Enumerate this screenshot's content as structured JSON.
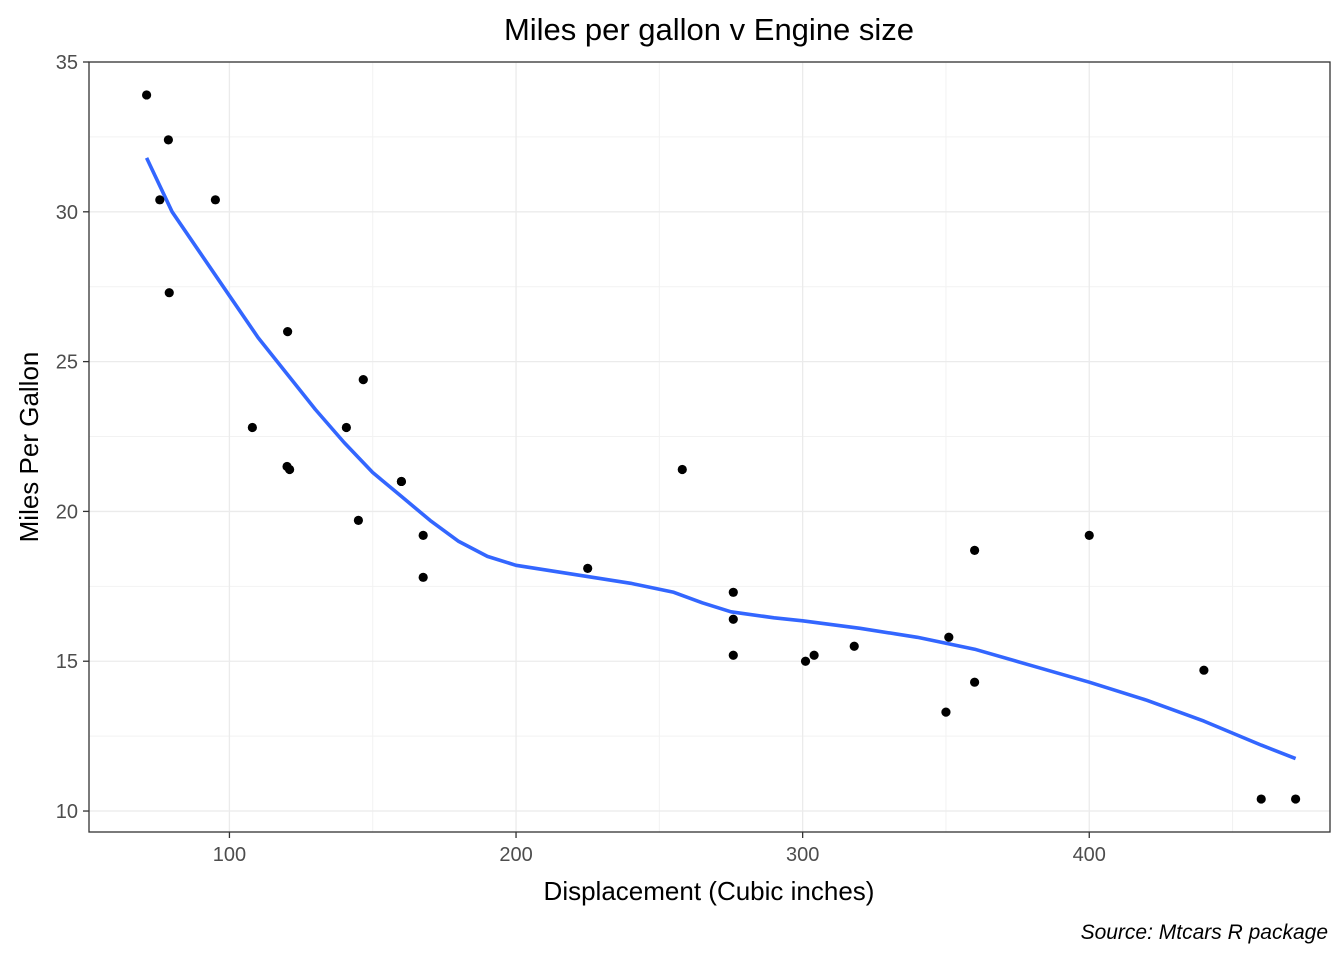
{
  "chart_data": {
    "type": "scatter",
    "title": "Miles per gallon v Engine size",
    "xlabel": "Displacement (Cubic inches)",
    "ylabel": "Miles Per Gallon",
    "caption": "Source: Mtcars R package",
    "xlim": [
      51,
      484
    ],
    "ylim": [
      9.3,
      35
    ],
    "xticks": [
      100,
      200,
      300,
      400
    ],
    "yticks": [
      10,
      15,
      20,
      25,
      30,
      35
    ],
    "grid": true,
    "points": [
      {
        "x": 71.1,
        "y": 33.9
      },
      {
        "x": 75.7,
        "y": 30.4
      },
      {
        "x": 78.7,
        "y": 32.4
      },
      {
        "x": 79.0,
        "y": 27.3
      },
      {
        "x": 95.1,
        "y": 30.4
      },
      {
        "x": 108.0,
        "y": 22.8
      },
      {
        "x": 120.1,
        "y": 21.5
      },
      {
        "x": 120.3,
        "y": 26.0
      },
      {
        "x": 121.0,
        "y": 21.4
      },
      {
        "x": 140.8,
        "y": 22.8
      },
      {
        "x": 145.0,
        "y": 19.7
      },
      {
        "x": 146.7,
        "y": 24.4
      },
      {
        "x": 160.0,
        "y": 21.0
      },
      {
        "x": 160.0,
        "y": 21.0
      },
      {
        "x": 167.6,
        "y": 19.2
      },
      {
        "x": 167.6,
        "y": 17.8
      },
      {
        "x": 225.0,
        "y": 18.1
      },
      {
        "x": 258.0,
        "y": 21.4
      },
      {
        "x": 275.8,
        "y": 16.4
      },
      {
        "x": 275.8,
        "y": 17.3
      },
      {
        "x": 275.8,
        "y": 15.2
      },
      {
        "x": 301.0,
        "y": 15.0
      },
      {
        "x": 304.0,
        "y": 15.2
      },
      {
        "x": 318.0,
        "y": 15.5
      },
      {
        "x": 350.0,
        "y": 13.3
      },
      {
        "x": 351.0,
        "y": 15.8
      },
      {
        "x": 360.0,
        "y": 18.7
      },
      {
        "x": 360.0,
        "y": 14.3
      },
      {
        "x": 400.0,
        "y": 19.2
      },
      {
        "x": 440.0,
        "y": 14.7
      },
      {
        "x": 460.0,
        "y": 10.4
      },
      {
        "x": 472.0,
        "y": 10.4
      }
    ],
    "smooth_line": {
      "color": "#3366ff",
      "x": [
        71.1,
        80,
        90,
        100,
        110,
        120,
        130,
        140,
        150,
        160,
        170,
        180,
        190,
        200,
        220,
        240,
        255,
        265,
        275,
        290,
        300,
        320,
        340,
        360,
        380,
        400,
        420,
        440,
        460,
        472
      ],
      "y": [
        31.8,
        30.0,
        28.6,
        27.2,
        25.8,
        24.6,
        23.4,
        22.3,
        21.3,
        20.5,
        19.7,
        19.0,
        18.5,
        18.2,
        17.9,
        17.6,
        17.3,
        16.95,
        16.65,
        16.45,
        16.35,
        16.1,
        15.8,
        15.4,
        14.85,
        14.3,
        13.7,
        13.0,
        12.2,
        11.75
      ]
    },
    "point_color": "#000000"
  }
}
